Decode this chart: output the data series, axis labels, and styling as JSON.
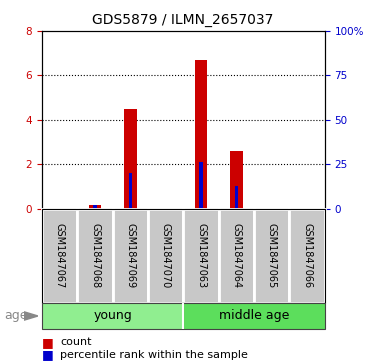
{
  "title": "GDS5879 / ILMN_2657037",
  "samples": [
    "GSM1847067",
    "GSM1847068",
    "GSM1847069",
    "GSM1847070",
    "GSM1847063",
    "GSM1847064",
    "GSM1847065",
    "GSM1847066"
  ],
  "count_values": [
    0,
    0.15,
    4.5,
    0,
    6.7,
    2.6,
    0,
    0
  ],
  "percentile_values": [
    0,
    0.18,
    1.6,
    0,
    2.1,
    1.0,
    0,
    0
  ],
  "count_color": "#cc0000",
  "percentile_color": "#0000cc",
  "ylim_left": [
    0,
    8
  ],
  "ylim_right": [
    0,
    100
  ],
  "yticks_left": [
    0,
    2,
    4,
    6,
    8
  ],
  "yticks_right": [
    0,
    25,
    50,
    75,
    100
  ],
  "bar_width": 0.35,
  "pct_bar_width": 0.1,
  "sample_box_color": "#c8c8c8",
  "group_color_young": "#90EE90",
  "group_color_middle": "#5CDE5C",
  "age_label": "age",
  "young_label": "young",
  "middle_label": "middle age",
  "title_fontsize": 10,
  "tick_fontsize": 7.5,
  "sample_fontsize": 7,
  "group_fontsize": 9,
  "legend_fontsize": 8
}
